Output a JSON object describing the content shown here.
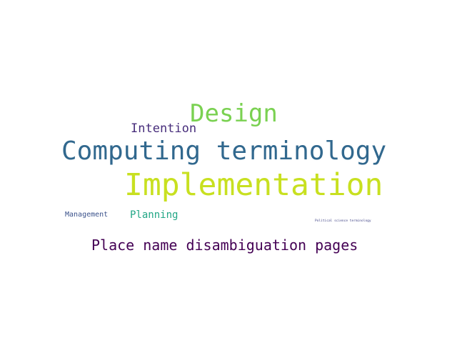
{
  "words": {
    "design": {
      "text": "Design",
      "color": "#7ad151"
    },
    "intention": {
      "text": "Intention",
      "color": "#472d7b"
    },
    "computing_terminology": {
      "text": "Computing terminology",
      "color": "#31688e"
    },
    "implementation": {
      "text": "Implementation",
      "color": "#c8e020"
    },
    "management": {
      "text": "Management",
      "color": "#3b528b"
    },
    "planning": {
      "text": "Planning",
      "color": "#21a685"
    },
    "political_science_terminology": {
      "text": "Political science terminology",
      "color": "#414487"
    },
    "place_name_disambiguation_pages": {
      "text": "Place name disambiguation pages",
      "color": "#440154"
    }
  },
  "background_color": "#ffffff"
}
